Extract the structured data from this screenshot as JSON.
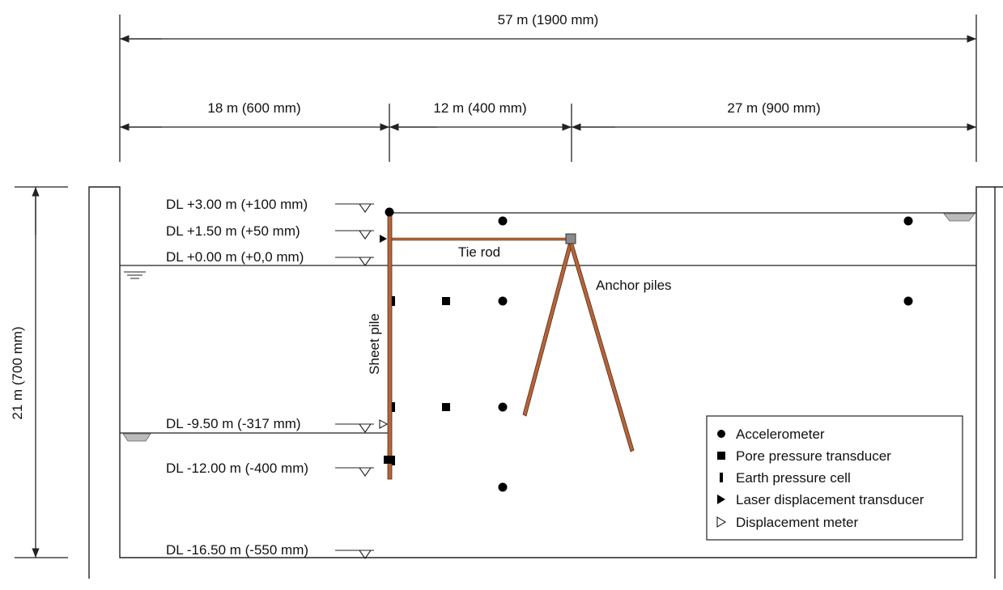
{
  "dimensions": {
    "total": "57 m (1900 mm)",
    "seg1": "18 m (600 mm)",
    "seg2": "12 m (400 mm)",
    "seg3": "27 m (900 mm)",
    "height": "21 m (700 mm)"
  },
  "levels": [
    {
      "label": "DL +3.00 m (+100 mm)"
    },
    {
      "label": "DL +1.50 m (+50 mm)"
    },
    {
      "label": "DL +0.00 m (+0,0 mm)"
    },
    {
      "label": "DL -9.50 m (-317 mm)"
    },
    {
      "label": "DL -12.00 m (-400 mm)"
    },
    {
      "label": "DL -16.50 m (-550 mm)"
    }
  ],
  "labels": {
    "tie_rod": "Tie rod",
    "anchor_piles": "Anchor piles",
    "sheet_pile": "Sheet pile"
  },
  "legend": [
    {
      "symbol": "circle",
      "label": "Accelerometer"
    },
    {
      "symbol": "square",
      "label": "Pore pressure transducer"
    },
    {
      "symbol": "bar",
      "label": "Earth pressure cell"
    },
    {
      "symbol": "triangle-filled",
      "label": "Laser displacement transducer"
    },
    {
      "symbol": "triangle-open",
      "label": "Displacement meter"
    }
  ],
  "colors": {
    "line": "#222222",
    "pile": "#b5643a",
    "pile_edge": "#5a2d12",
    "anchor_block": "#8a8a8a"
  }
}
